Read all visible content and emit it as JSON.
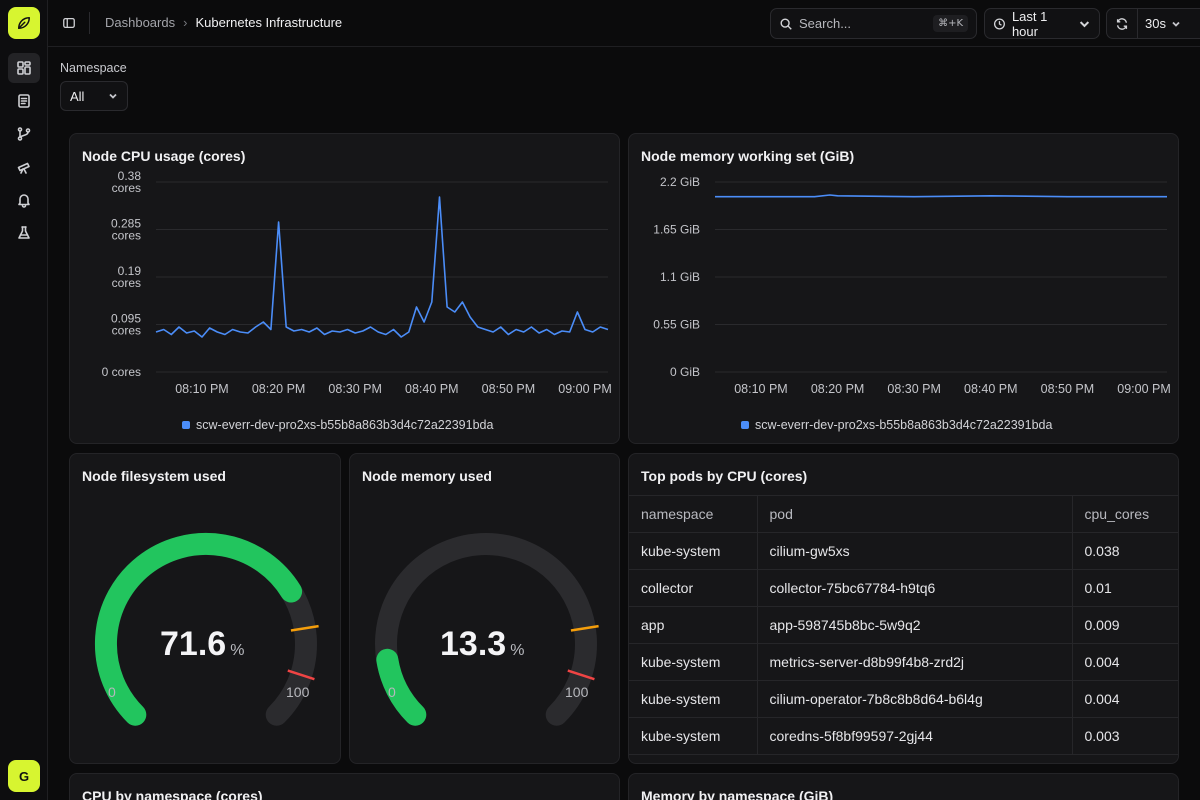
{
  "nav": {
    "items": [
      "dashboards",
      "logs",
      "traces",
      "explore",
      "alerts",
      "experiments"
    ],
    "avatar_initial": "G"
  },
  "topbar": {
    "breadcrumb_parent": "Dashboards",
    "breadcrumb_current": "Kubernetes Infrastructure",
    "search_placeholder": "Search...",
    "search_shortcut": "⌘+K",
    "time_range": "Last 1 hour",
    "refresh_interval": "30s"
  },
  "filters": {
    "namespace_label": "Namespace",
    "namespace_value": "All"
  },
  "panels": {
    "cpu": {
      "title": "Node CPU usage (cores)",
      "legend": "scw-everr-dev-pro2xs-b55b8a863b3d4c72a22391bda"
    },
    "memory_ws": {
      "title": "Node memory working set (GiB)",
      "legend": "scw-everr-dev-pro2xs-b55b8a863b3d4c72a22391bda"
    },
    "fs_used": {
      "title": "Node filesystem used",
      "value": "71.6",
      "unit": "%",
      "min": "0",
      "max": "100"
    },
    "mem_used": {
      "title": "Node memory used",
      "value": "13.3",
      "unit": "%",
      "min": "0",
      "max": "100"
    },
    "top_pods": {
      "title": "Top pods by CPU (cores)",
      "columns": [
        "namespace",
        "pod",
        "cpu_cores"
      ],
      "rows": [
        [
          "kube-system",
          "cilium-gw5xs",
          "0.038"
        ],
        [
          "collector",
          "collector-75bc67784-h9tq6",
          "0.01"
        ],
        [
          "app",
          "app-598745b8bc-5w9q2",
          "0.009"
        ],
        [
          "kube-system",
          "metrics-server-d8b99f4b8-zrd2j",
          "0.004"
        ],
        [
          "kube-system",
          "cilium-operator-7b8c8b8d64-b6l4g",
          "0.004"
        ],
        [
          "kube-system",
          "coredns-5f8bf99597-2gj44",
          "0.003"
        ]
      ]
    },
    "cpu_ns": {
      "title": "CPU by namespace (cores)"
    },
    "mem_ns": {
      "title": "Memory by namespace (GiB)"
    }
  },
  "colors": {
    "series": "#4b8df8",
    "gauge_fill": "#22c55e",
    "gauge_track": "#2b2b2e",
    "warn_threshold": "#f59e0b",
    "crit_threshold": "#ef4444",
    "logo": "#d7f530"
  },
  "chart_data": [
    {
      "type": "line",
      "ylabel_ticks": [
        "0 cores",
        "0.095 cores",
        "0.19 cores",
        "0.285 cores",
        "0.38 cores"
      ],
      "yticks": [
        0,
        0.095,
        0.19,
        0.285,
        0.38
      ],
      "ylim": [
        0,
        0.38
      ],
      "xticks": [
        "08:10 PM",
        "08:20 PM",
        "08:30 PM",
        "08:40 PM",
        "08:50 PM",
        "09:00 PM"
      ],
      "x_minutes_range": [
        "08:04 PM",
        "09:03 PM"
      ],
      "grid": true,
      "legend": "bottom-center",
      "series": [
        {
          "name": "scw-everr-dev-pro2xs-b55b8a863b3d4c72a22391bda",
          "x": [
            "08:04 PM",
            "08:05 PM",
            "08:06 PM",
            "08:07 PM",
            "08:08 PM",
            "08:09 PM",
            "08:10 PM",
            "08:11 PM",
            "08:12 PM",
            "08:13 PM",
            "08:14 PM",
            "08:15 PM",
            "08:16 PM",
            "08:17 PM",
            "08:18 PM",
            "08:19 PM",
            "08:20 PM",
            "08:21 PM",
            "08:22 PM",
            "08:23 PM",
            "08:24 PM",
            "08:25 PM",
            "08:26 PM",
            "08:27 PM",
            "08:28 PM",
            "08:29 PM",
            "08:30 PM",
            "08:31 PM",
            "08:32 PM",
            "08:33 PM",
            "08:34 PM",
            "08:35 PM",
            "08:36 PM",
            "08:37 PM",
            "08:38 PM",
            "08:39 PM",
            "08:40 PM",
            "08:41 PM",
            "08:42 PM",
            "08:43 PM",
            "08:44 PM",
            "08:45 PM",
            "08:46 PM",
            "08:47 PM",
            "08:48 PM",
            "08:49 PM",
            "08:50 PM",
            "08:51 PM",
            "08:52 PM",
            "08:53 PM",
            "08:54 PM",
            "08:55 PM",
            "08:56 PM",
            "08:57 PM",
            "08:58 PM",
            "08:59 PM",
            "09:00 PM",
            "09:01 PM",
            "09:02 PM",
            "09:03 PM"
          ],
          "values": [
            0.08,
            0.085,
            0.075,
            0.09,
            0.078,
            0.082,
            0.07,
            0.088,
            0.08,
            0.075,
            0.085,
            0.08,
            0.078,
            0.09,
            0.1,
            0.085,
            0.3,
            0.09,
            0.082,
            0.085,
            0.08,
            0.088,
            0.075,
            0.082,
            0.08,
            0.085,
            0.078,
            0.082,
            0.09,
            0.08,
            0.075,
            0.085,
            0.07,
            0.08,
            0.13,
            0.1,
            0.14,
            0.35,
            0.13,
            0.12,
            0.14,
            0.11,
            0.09,
            0.085,
            0.08,
            0.09,
            0.075,
            0.085,
            0.08,
            0.09,
            0.078,
            0.085,
            0.075,
            0.082,
            0.08,
            0.12,
            0.085,
            0.08,
            0.09,
            0.085
          ]
        }
      ]
    },
    {
      "type": "line",
      "ylabel_ticks": [
        "0 GiB",
        "0.55 GiB",
        "1.1 GiB",
        "1.65 GiB",
        "2.2 GiB"
      ],
      "yticks": [
        0,
        0.55,
        1.1,
        1.65,
        2.2
      ],
      "ylim": [
        0,
        2.2
      ],
      "xticks": [
        "08:10 PM",
        "08:20 PM",
        "08:30 PM",
        "08:40 PM",
        "08:50 PM",
        "09:00 PM"
      ],
      "grid": true,
      "legend": "bottom-center",
      "series": [
        {
          "name": "scw-everr-dev-pro2xs-b55b8a863b3d4c72a22391bda",
          "x": [
            "08:04 PM",
            "08:10 PM",
            "08:17 PM",
            "08:19 PM",
            "08:20 PM",
            "08:30 PM",
            "08:40 PM",
            "08:50 PM",
            "09:00 PM",
            "09:03 PM"
          ],
          "values": [
            2.03,
            2.03,
            2.03,
            2.05,
            2.04,
            2.03,
            2.04,
            2.03,
            2.03,
            2.03
          ]
        }
      ]
    },
    {
      "type": "gauge",
      "title": "Node filesystem used",
      "value": 71.6,
      "min": 0,
      "max": 100,
      "thresholds": [
        80,
        90
      ]
    },
    {
      "type": "gauge",
      "title": "Node memory used",
      "value": 13.3,
      "min": 0,
      "max": 100,
      "thresholds": [
        80,
        90
      ]
    }
  ]
}
